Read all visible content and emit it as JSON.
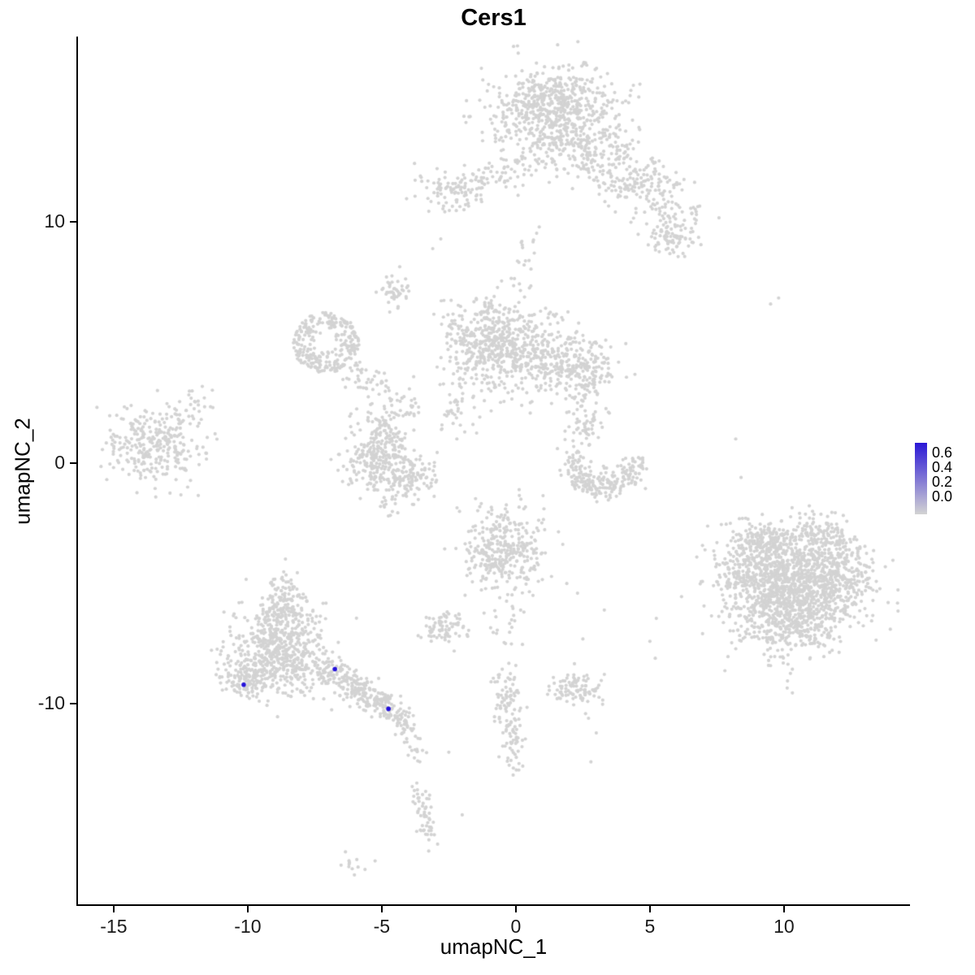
{
  "title": "Cers1",
  "axes": {
    "x_label": "umapNC_1",
    "y_label": "umapNC_2",
    "x_ticks": [
      -15,
      -10,
      -5,
      0,
      5,
      10
    ],
    "y_ticks": [
      -10,
      0,
      10
    ],
    "xlim": [
      -16.36,
      14.7
    ],
    "ylim": [
      -18.38,
      17.7
    ]
  },
  "legend": {
    "ticks": [
      "0.6",
      "0.4",
      "0.2",
      "0.0"
    ],
    "high_color": "#2a17d6",
    "low_color": "#d3d3d3"
  },
  "chart_data": {
    "type": "scatter",
    "title": "Cers1",
    "xlabel": "umapNC_1",
    "ylabel": "umapNC_2",
    "point_color": "#d3d3d3",
    "highlight_color": "#2411d9",
    "point_radius": 2.1,
    "highlight_radius": 2.8,
    "clusters": [
      {
        "kind": "gauss",
        "x": 1.5,
        "y": 14.3,
        "sx": 1.2,
        "sy": 1.05,
        "n": 560
      },
      {
        "kind": "gauss",
        "x": 1.2,
        "y": 15.2,
        "sx": 0.95,
        "sy": 0.5,
        "n": 170
      },
      {
        "kind": "gauss",
        "x": 3.1,
        "y": 12.8,
        "sx": 0.8,
        "sy": 0.7,
        "n": 140
      },
      {
        "kind": "gauss",
        "x": 4.6,
        "y": 11.6,
        "sx": 0.8,
        "sy": 0.55,
        "n": 130
      },
      {
        "kind": "gauss",
        "x": 5.8,
        "y": 10.1,
        "sx": 0.6,
        "sy": 0.6,
        "n": 90
      },
      {
        "kind": "gauss",
        "x": 5.9,
        "y": 9.2,
        "sx": 0.4,
        "sy": 0.35,
        "n": 40
      },
      {
        "kind": "gauss",
        "x": -2.5,
        "y": 11.35,
        "sx": 0.65,
        "sy": 0.5,
        "n": 95
      },
      {
        "kind": "line",
        "x1": -1.8,
        "y1": 11.6,
        "x2": 0.2,
        "y2": 12.4,
        "jitter": 0.3,
        "n": 55
      },
      {
        "kind": "line",
        "x1": 0.6,
        "y1": 9.9,
        "x2": 0.1,
        "y2": 6.8,
        "jitter": 0.25,
        "n": 22
      },
      {
        "kind": "gauss",
        "x": -4.55,
        "y": 7.1,
        "sx": 0.3,
        "sy": 0.35,
        "n": 45
      },
      {
        "kind": "ring",
        "x": -7.1,
        "y": 5.0,
        "r0": 0.35,
        "r1": 1.25,
        "n": 270
      },
      {
        "kind": "line",
        "x1": -6.3,
        "y1": 3.9,
        "x2": -4.9,
        "y2": 3.0,
        "jitter": 0.3,
        "n": 45
      },
      {
        "kind": "line",
        "x1": -4.9,
        "y1": 3.0,
        "x2": -3.6,
        "y2": 2.2,
        "jitter": 0.25,
        "n": 30
      },
      {
        "kind": "gauss",
        "x": -1.0,
        "y": 5.0,
        "sx": 0.85,
        "sy": 0.95,
        "n": 430
      },
      {
        "kind": "gauss",
        "x": 0.9,
        "y": 4.4,
        "sx": 1.0,
        "sy": 0.8,
        "n": 310
      },
      {
        "kind": "gauss",
        "x": 2.5,
        "y": 3.8,
        "sx": 0.6,
        "sy": 0.6,
        "n": 160
      },
      {
        "kind": "line",
        "x1": -2.1,
        "y1": 3.2,
        "x2": -2.4,
        "y2": 1.6,
        "jitter": 0.3,
        "n": 35
      },
      {
        "kind": "gauss",
        "x": -5.4,
        "y": 0.1,
        "sx": 0.55,
        "sy": 0.6,
        "n": 150
      },
      {
        "kind": "gauss",
        "x": -4.2,
        "y": -0.4,
        "sx": 0.65,
        "sy": 0.5,
        "n": 170
      },
      {
        "kind": "gauss",
        "x": -4.8,
        "y": 1.0,
        "sx": 0.4,
        "sy": 0.4,
        "n": 60
      },
      {
        "kind": "gauss",
        "x": -5.1,
        "y": 1.9,
        "sx": 0.45,
        "sy": 0.25,
        "n": 35
      },
      {
        "kind": "line",
        "x1": -4.9,
        "y1": -1.3,
        "x2": -4.6,
        "y2": -2.3,
        "jitter": 0.15,
        "n": 12
      },
      {
        "kind": "gauss",
        "x": -13.4,
        "y": 0.8,
        "sx": 0.9,
        "sy": 0.75,
        "n": 300
      },
      {
        "kind": "line",
        "x1": -12.4,
        "y1": 1.9,
        "x2": -11.5,
        "y2": 2.6,
        "jitter": 0.3,
        "n": 22
      },
      {
        "kind": "arc",
        "x": 3.3,
        "y": 0.2,
        "r": 1.2,
        "a0": 180,
        "a1": 360,
        "jitter": 0.27,
        "n": 230
      },
      {
        "kind": "gauss",
        "x": 2.6,
        "y": 1.6,
        "sx": 0.35,
        "sy": 0.45,
        "n": 55
      },
      {
        "kind": "gauss",
        "x": 10.4,
        "y": -5.2,
        "sx": 1.25,
        "sy": 1.15,
        "n": 1250
      },
      {
        "kind": "gauss",
        "x": 8.6,
        "y": -4.4,
        "sx": 0.6,
        "sy": 0.8,
        "n": 150
      },
      {
        "kind": "gauss",
        "x": 12.1,
        "y": -4.6,
        "sx": 0.6,
        "sy": 0.8,
        "n": 150
      },
      {
        "kind": "gauss",
        "x": 10.0,
        "y": -6.9,
        "sx": 0.9,
        "sy": 0.5,
        "n": 150
      },
      {
        "kind": "gauss",
        "x": 11.4,
        "y": -3.1,
        "sx": 0.6,
        "sy": 0.45,
        "n": 120
      },
      {
        "kind": "gauss",
        "x": 9.3,
        "y": -3.2,
        "sx": 0.6,
        "sy": 0.45,
        "n": 120
      },
      {
        "kind": "gauss",
        "x": -8.8,
        "y": -7.9,
        "sx": 0.95,
        "sy": 0.85,
        "n": 540
      },
      {
        "kind": "gauss",
        "x": -8.7,
        "y": -6.1,
        "sx": 0.55,
        "sy": 0.6,
        "n": 150
      },
      {
        "kind": "gauss",
        "x": -8.6,
        "y": -5.3,
        "sx": 0.3,
        "sy": 0.3,
        "n": 35
      },
      {
        "kind": "gauss",
        "x": -10.1,
        "y": -8.9,
        "sx": 0.5,
        "sy": 0.45,
        "n": 120
      },
      {
        "kind": "line",
        "x1": -7.3,
        "y1": -8.5,
        "x2": -4.8,
        "y2": -10.1,
        "jitter": 0.3,
        "n": 240
      },
      {
        "kind": "line",
        "x1": -4.8,
        "y1": -10.1,
        "x2": -4.0,
        "y2": -11.0,
        "jitter": 0.25,
        "n": 60
      },
      {
        "kind": "line",
        "x1": -4.0,
        "y1": -11.2,
        "x2": -3.7,
        "y2": -12.3,
        "jitter": 0.18,
        "n": 22
      },
      {
        "kind": "line",
        "x1": -3.6,
        "y1": -13.4,
        "x2": -3.2,
        "y2": -15.6,
        "jitter": 0.2,
        "n": 55
      },
      {
        "kind": "gauss",
        "x": -6.1,
        "y": -16.6,
        "sx": 0.25,
        "sy": 0.2,
        "n": 12
      },
      {
        "kind": "gauss",
        "x": -0.5,
        "y": -3.55,
        "sx": 0.75,
        "sy": 0.85,
        "n": 340
      },
      {
        "kind": "line",
        "x1": -0.2,
        "y1": -5.2,
        "x2": -0.4,
        "y2": -7.6,
        "jitter": 0.3,
        "n": 26
      },
      {
        "kind": "gauss",
        "x": -0.35,
        "y": -9.6,
        "sx": 0.3,
        "sy": 0.55,
        "n": 70
      },
      {
        "kind": "line",
        "x1": -0.2,
        "y1": -10.6,
        "x2": -0.1,
        "y2": -12.8,
        "jitter": 0.2,
        "n": 55
      },
      {
        "kind": "gauss",
        "x": -2.75,
        "y": -6.8,
        "sx": 0.42,
        "sy": 0.33,
        "n": 75
      },
      {
        "kind": "gauss",
        "x": 2.35,
        "y": -9.4,
        "sx": 0.5,
        "sy": 0.33,
        "n": 95
      }
    ],
    "singles": [
      [
        5.0,
        -7.4
      ],
      [
        5.2,
        -8.1
      ],
      [
        3.3,
        -6.1
      ],
      [
        2.5,
        -7.3
      ],
      [
        2.3,
        -5.4
      ],
      [
        1.9,
        -5.0
      ],
      [
        -2.3,
        -7.8
      ],
      [
        -2.5,
        -12.0
      ],
      [
        -2.0,
        -14.6
      ],
      [
        -3.25,
        -16.1
      ],
      [
        9.5,
        6.6
      ],
      [
        9.8,
        6.85
      ],
      [
        8.2,
        1.0
      ],
      [
        8.4,
        -0.6
      ],
      [
        8.0,
        -2.5
      ],
      [
        7.5,
        -3.3
      ],
      [
        -11.9,
        0.6
      ],
      [
        -12.3,
        -0.3
      ],
      [
        -11.3,
        2.3
      ],
      [
        -3.1,
        8.9
      ],
      [
        -2.8,
        9.3
      ],
      [
        1.9,
        2.1
      ],
      [
        2.3,
        2.5
      ],
      [
        -2.2,
        1.0
      ],
      [
        -1.6,
        1.6
      ],
      [
        0.3,
        -1.9
      ],
      [
        1.4,
        -8.9
      ],
      [
        2.6,
        -10.4
      ],
      [
        3.0,
        -11.2
      ],
      [
        2.8,
        -12.4
      ]
    ],
    "highlights": [
      {
        "x": -10.15,
        "y": -9.2,
        "value": 0.6
      },
      {
        "x": -6.75,
        "y": -8.55,
        "value": 0.6
      },
      {
        "x": -4.75,
        "y": -10.2,
        "value": 0.6
      }
    ],
    "legend_range": [
      0.0,
      0.6
    ]
  }
}
